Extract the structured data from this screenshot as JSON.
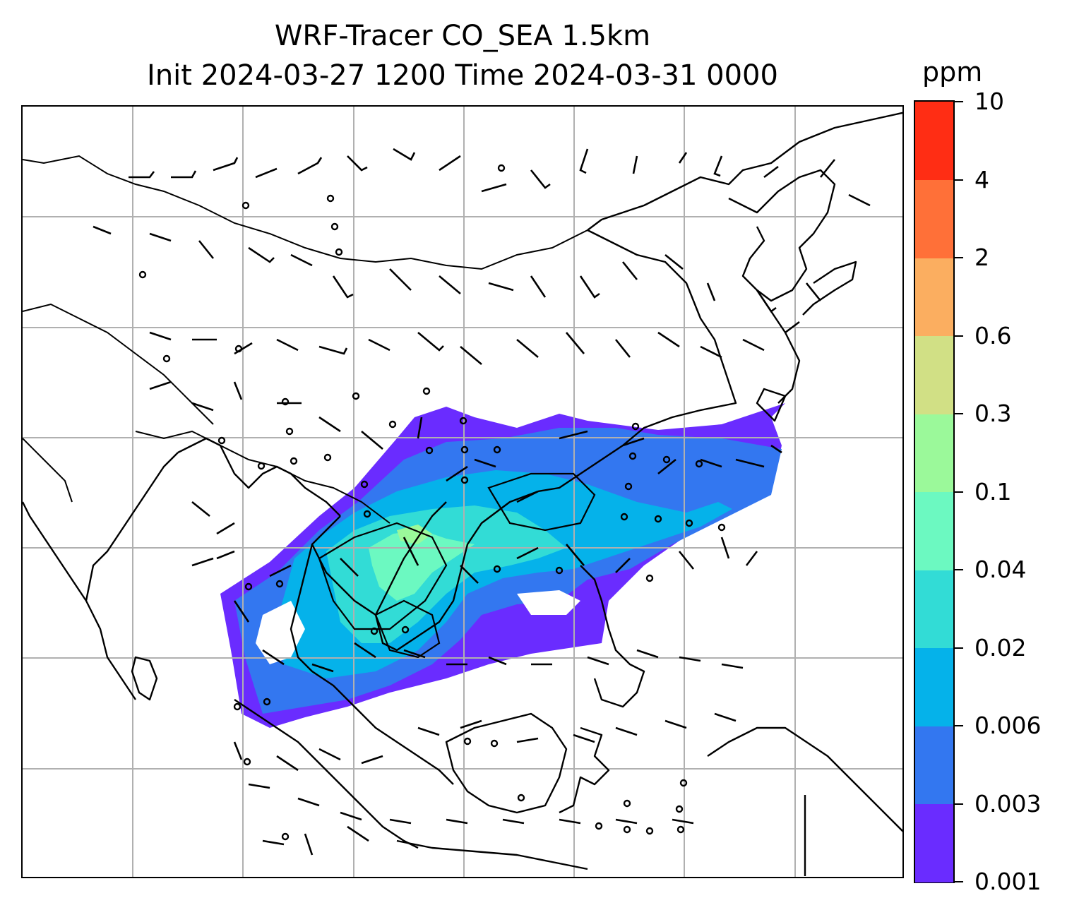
{
  "title": {
    "line1": "WRF-Tracer CO_SEA 1.5km",
    "line2": "Init 2024-03-27 1200 Time 2024-03-31 0000"
  },
  "colorbar": {
    "unit": "ppm",
    "ticks": [
      "0.001",
      "0.003",
      "0.006",
      "0.02",
      "0.04",
      "0.1",
      "0.3",
      "0.6",
      "2",
      "4",
      "10"
    ],
    "colors": [
      "#6a2cff",
      "#3377f0",
      "#05b2ea",
      "#32dcd6",
      "#6cf9c1",
      "#9bf99a",
      "#d1e085",
      "#fbae60",
      "#ff7038",
      "#ff2d14"
    ]
  },
  "map": {
    "concentration_field_colors": {
      "plume_edge": "#6a2cff",
      "plume_body": "#3377f0",
      "plume_mid": "#05b2ea",
      "plume_core": "#32dcd6",
      "plume_peak": "#6cf9c1",
      "plume_max": "#9bf99a"
    },
    "gridlines": "on",
    "coastlines": "on",
    "wind_barbs": "on",
    "contours": "on"
  }
}
